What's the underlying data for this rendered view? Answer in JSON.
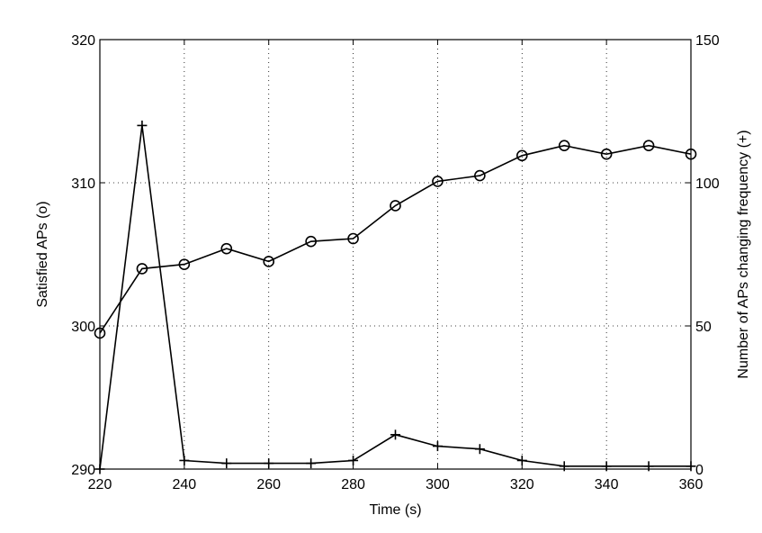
{
  "chart_data": {
    "type": "line",
    "title": "",
    "xlabel": "Time (s)",
    "ylabel_left": "Satisfied APs (o)",
    "ylabel_right": "Number of APs changing frequency (+)",
    "xlim": [
      220,
      360
    ],
    "ylim_left": [
      290,
      320
    ],
    "ylim_right": [
      0,
      150
    ],
    "x_ticks": [
      "220",
      "240",
      "260",
      "280",
      "300",
      "320",
      "340",
      "360"
    ],
    "y_left_ticks": [
      "290",
      "300",
      "310",
      "320"
    ],
    "y_right_ticks": [
      "0",
      "50",
      "100",
      "150"
    ],
    "grid": true,
    "x": [
      220,
      230,
      240,
      250,
      260,
      270,
      280,
      290,
      300,
      310,
      320,
      330,
      340,
      350,
      360
    ],
    "series": [
      {
        "axis": "left",
        "marker": "circle",
        "values": [
          299.5,
          304.0,
          304.3,
          305.4,
          304.5,
          305.9,
          306.1,
          308.4,
          310.1,
          310.5,
          311.9,
          312.6,
          312.0,
          312.6,
          312.0
        ]
      },
      {
        "axis": "right",
        "marker": "plus",
        "values": [
          0,
          120,
          3,
          2,
          2,
          2,
          3,
          12,
          8,
          7,
          3,
          1,
          1,
          1,
          1
        ]
      }
    ],
    "color": "#000000"
  }
}
